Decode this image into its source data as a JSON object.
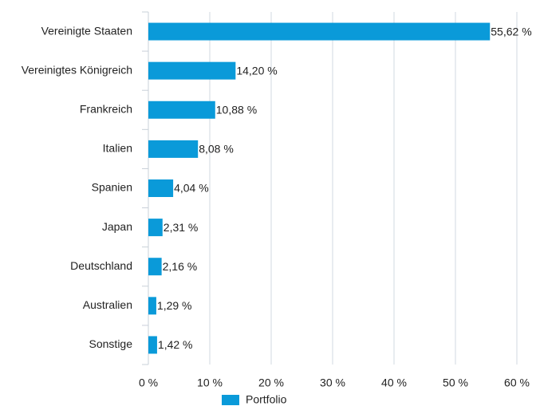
{
  "chart_data": {
    "type": "hbar",
    "categories": [
      "Vereinigte Staaten",
      "Vereinigtes Königreich",
      "Frankreich",
      "Italien",
      "Spanien",
      "Japan",
      "Deutschland",
      "Australien",
      "Sonstige"
    ],
    "series": [
      {
        "name": "Portfolio",
        "color": "#0a9ad9",
        "values": [
          55.62,
          14.2,
          10.88,
          8.08,
          4.04,
          2.31,
          2.16,
          1.29,
          1.42
        ],
        "value_labels": [
          "55,62 %",
          "14,20 %",
          "10,88 %",
          "8,08 %",
          "4,04 %",
          "2,31 %",
          "2,16 %",
          "1,29 %",
          "1,42 %"
        ]
      }
    ],
    "xlim": [
      0,
      60
    ],
    "xticks": [
      {
        "value": 0,
        "label": "0 %"
      },
      {
        "value": 10,
        "label": "10 %"
      },
      {
        "value": 20,
        "label": "20 %"
      },
      {
        "value": 30,
        "label": "30 %"
      },
      {
        "value": 40,
        "label": "40 %"
      },
      {
        "value": 50,
        "label": "50 %"
      },
      {
        "value": 60,
        "label": "60 %"
      }
    ],
    "grid": true
  }
}
